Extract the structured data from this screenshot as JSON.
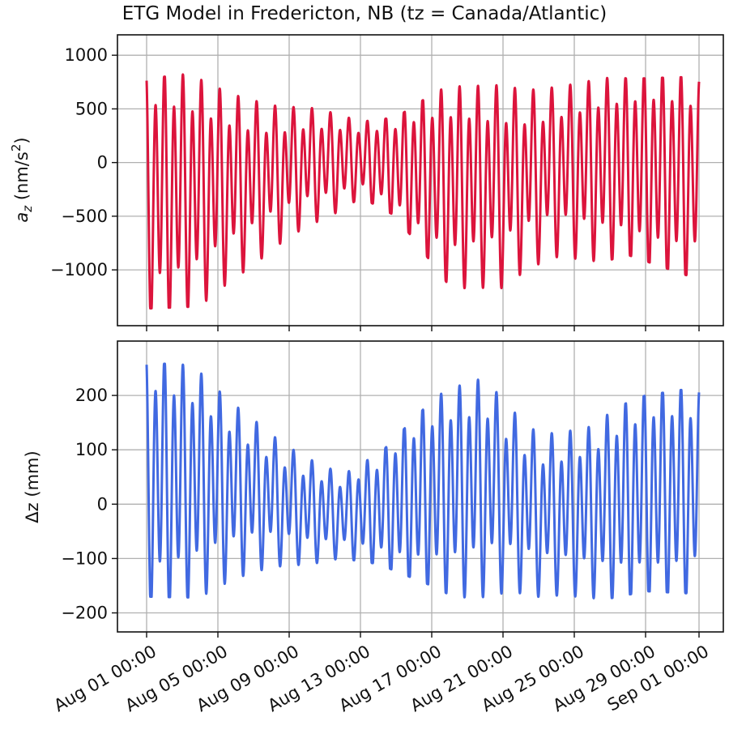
{
  "title": "ETG Model in Fredericton, NB (tz = Canada/Atlantic)",
  "chart_data": [
    {
      "type": "line",
      "panel": "top",
      "ylabel_main": "a",
      "ylabel_sub": "z",
      "ylabel_unit": " (nm/s",
      "ylabel_sup": "2",
      "ylabel_close": ")",
      "series": [
        {
          "color": "#dc143c",
          "x": [
            "2023-08-01",
            "2023-09-01"
          ],
          "envelope": [
            {
              "day": 0,
              "high": 780,
              "low": -1360
            },
            {
              "day": 3,
              "high": 840,
              "low": -1340
            },
            {
              "day": 6,
              "high": 820,
              "low": -1150
            },
            {
              "day": 9,
              "high": 660,
              "low": -700
            },
            {
              "day": 12,
              "high": 380,
              "low": -320
            },
            {
              "day": 14,
              "high": 420,
              "low": -500
            },
            {
              "day": 17,
              "high": 740,
              "low": -1150
            },
            {
              "day": 20,
              "high": 1000,
              "low": -1380
            },
            {
              "day": 23,
              "high": 930,
              "low": -1050
            },
            {
              "day": 27,
              "high": 780,
              "low": -860
            },
            {
              "day": 31,
              "high": 800,
              "low": -1090
            }
          ]
        }
      ],
      "ylim": [
        -1520,
        1190
      ],
      "yticks": [
        1000,
        500,
        0,
        -500,
        -1000
      ],
      "ytick_labels": [
        "1000",
        "500",
        "0",
        "−500",
        "−1000"
      ],
      "grid": true
    },
    {
      "type": "line",
      "panel": "bottom",
      "ylabel": "Δz (mm)",
      "series": [
        {
          "color": "#4169e1",
          "x": [
            "2023-08-01",
            "2023-09-01"
          ],
          "envelope": [
            {
              "day": 0,
              "high": 260,
              "low": -170
            },
            {
              "day": 3,
              "high": 255,
              "low": -172
            },
            {
              "day": 6,
              "high": 200,
              "low": -160
            },
            {
              "day": 9,
              "high": 110,
              "low": -130
            },
            {
              "day": 11,
              "high": 60,
              "low": -100
            },
            {
              "day": 13,
              "high": 90,
              "low": -110
            },
            {
              "day": 16,
              "high": 190,
              "low": -150
            },
            {
              "day": 19,
              "high": 275,
              "low": -200
            },
            {
              "day": 22,
              "high": 180,
              "low": -210
            },
            {
              "day": 25,
              "high": 160,
              "low": -180
            },
            {
              "day": 28,
              "high": 200,
              "low": -160
            },
            {
              "day": 31,
              "high": 215,
              "low": -165
            }
          ]
        }
      ],
      "ylim": [
        -235,
        300
      ],
      "yticks": [
        200,
        100,
        0,
        -100,
        -200
      ],
      "ytick_labels": [
        "200",
        "100",
        "0",
        "−100",
        "−200"
      ],
      "grid": true
    }
  ],
  "xaxis": {
    "shared": true,
    "tick_days": [
      0,
      4,
      8,
      12,
      16,
      20,
      24,
      28,
      31
    ],
    "tick_labels": [
      "Aug 01 00:00",
      "Aug 05 00:00",
      "Aug 09 00:00",
      "Aug 13 00:00",
      "Aug 17 00:00",
      "Aug 21 00:00",
      "Aug 25 00:00",
      "Aug 29 00:00",
      "Sep 01 00:00"
    ],
    "label_rotation": "30°"
  }
}
